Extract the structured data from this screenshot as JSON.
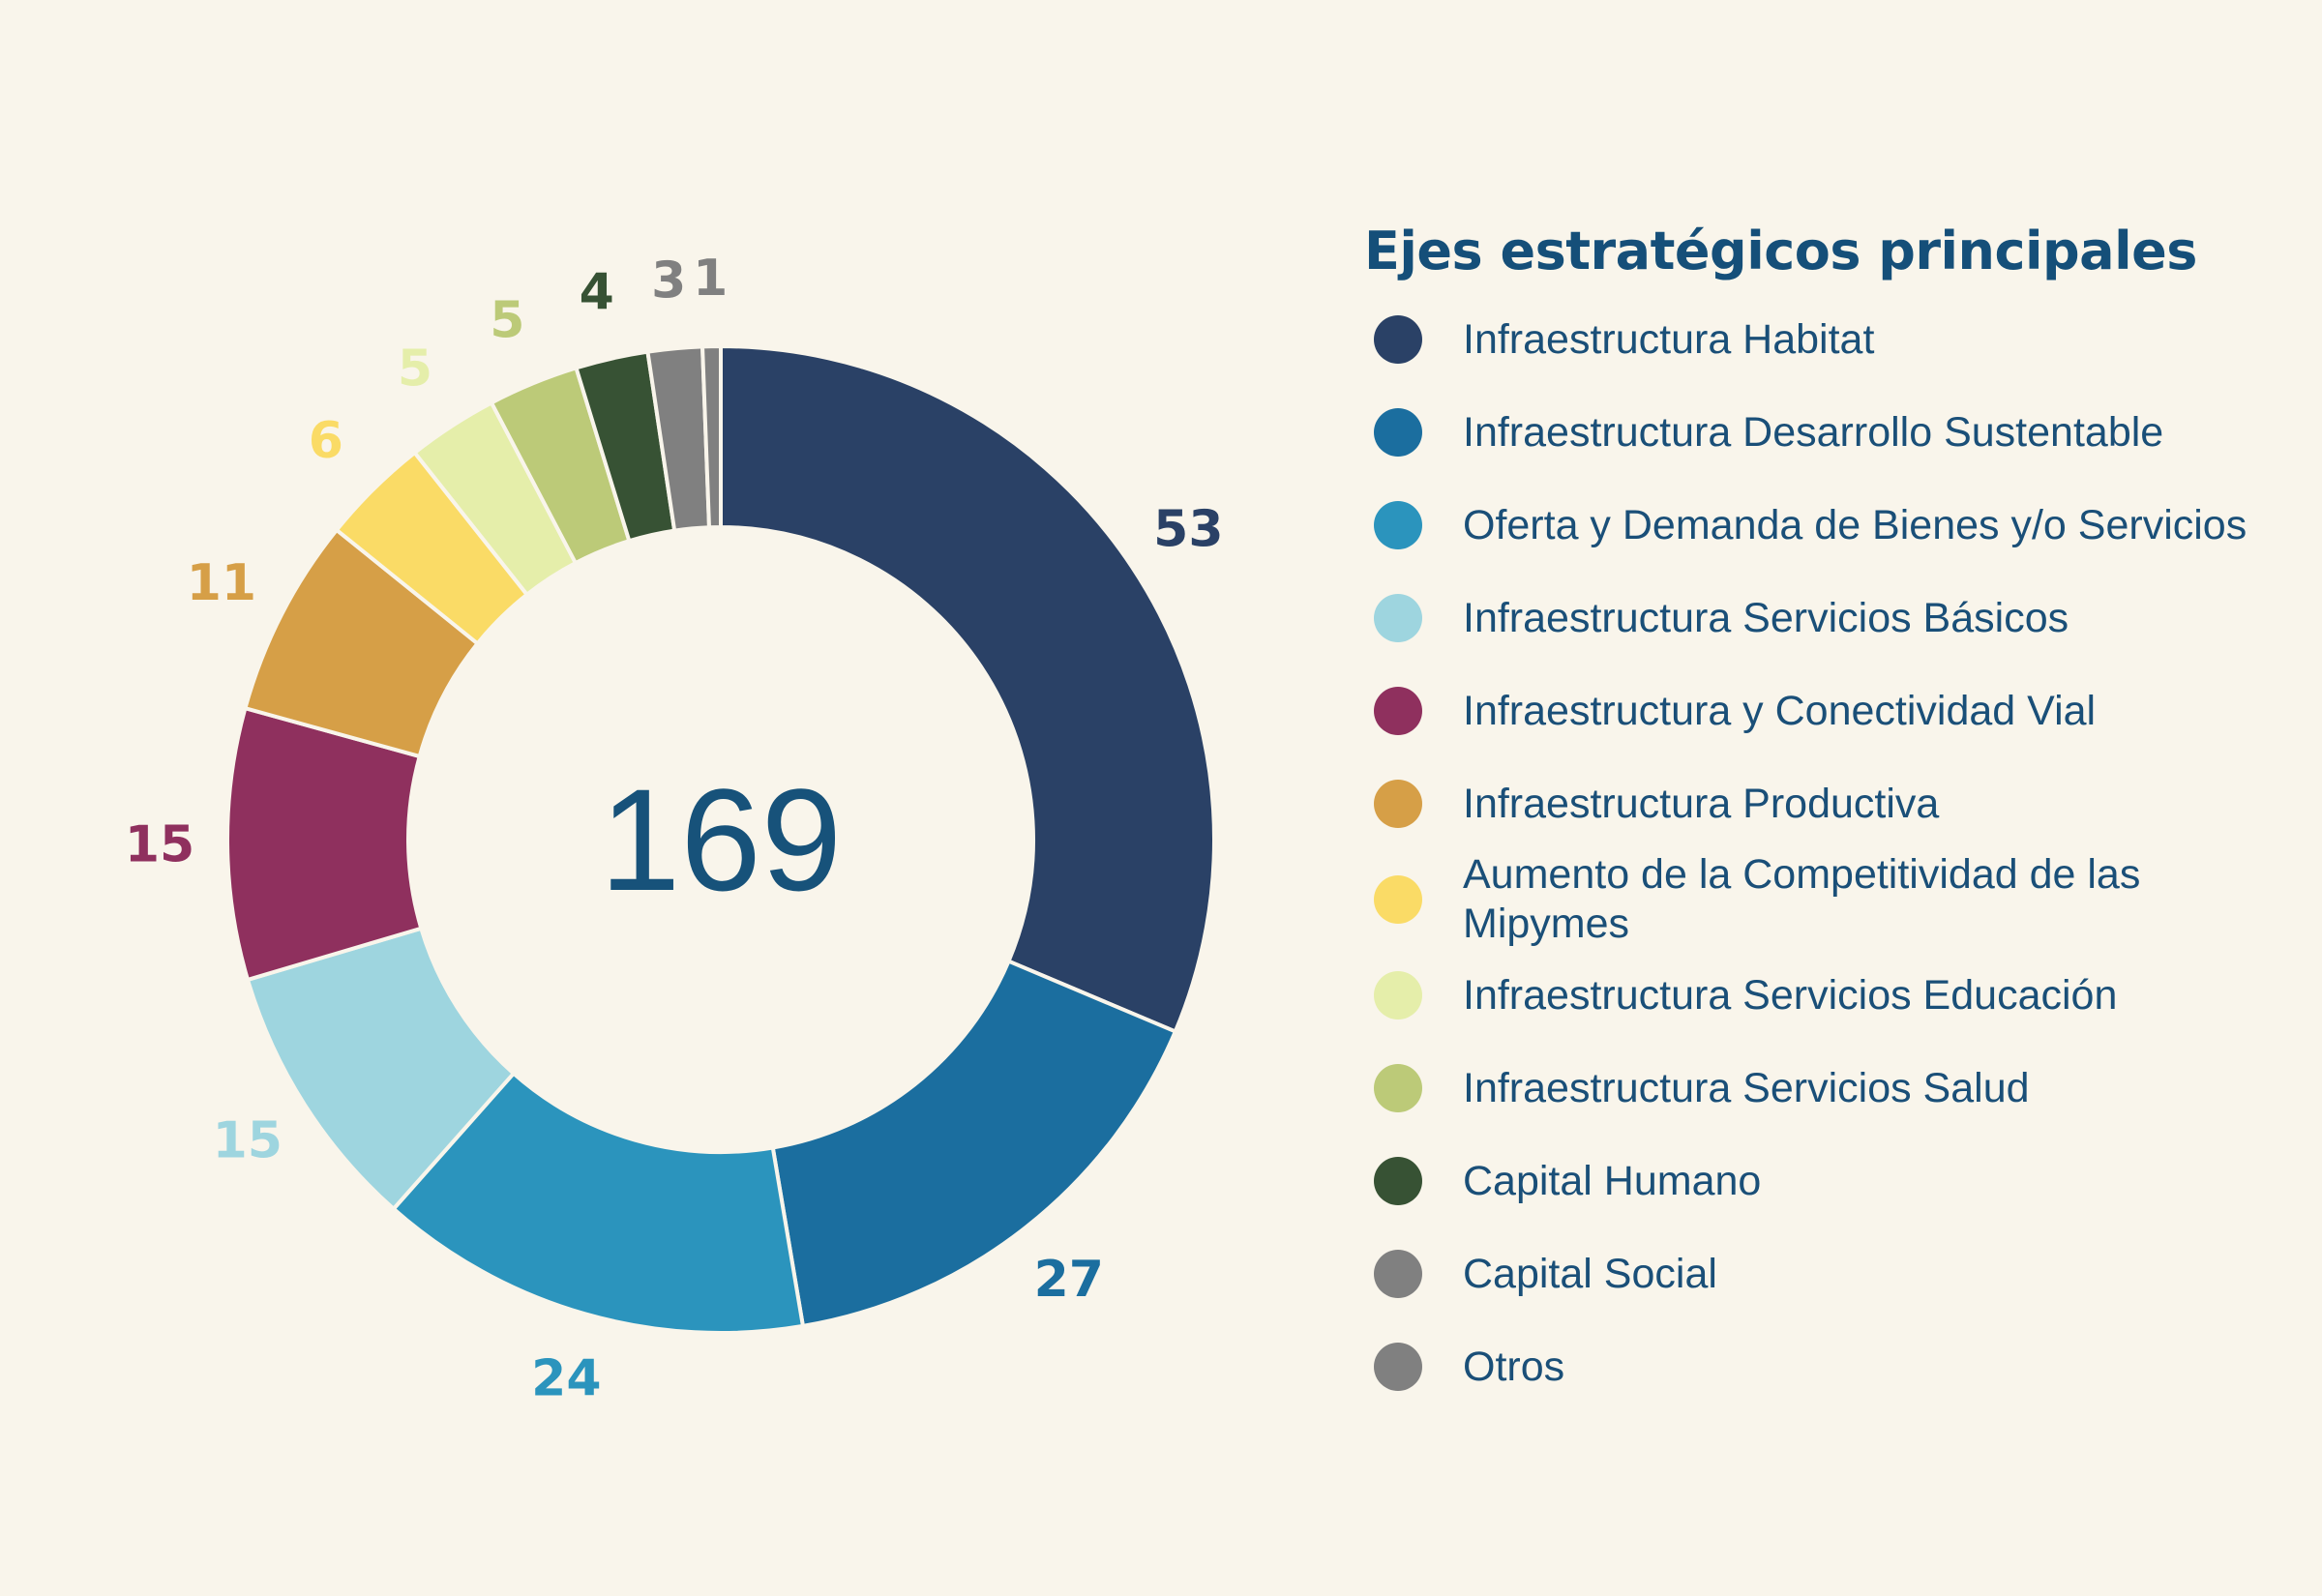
{
  "chart_data": {
    "type": "pie",
    "donut": true,
    "center_total": "169",
    "legend_title": "Ejes estratégicos principales",
    "legend_position": "right",
    "slices": [
      {
        "label": "Infraestructura Habitat",
        "value": 53,
        "color": "#2a4166",
        "label_color": "#2a4166"
      },
      {
        "label": "Infraestructura Desarrollo Sustentable",
        "value": 27,
        "color": "#1b6e9f",
        "label_color": "#1b6e9f"
      },
      {
        "label": "Oferta y Demanda de Bienes y/o Servicios",
        "value": 24,
        "color": "#2b94bd",
        "label_color": "#2b94bd"
      },
      {
        "label": "Infraestructura Servicios Básicos",
        "value": 15,
        "color": "#9ed5df",
        "label_color": "#9ed5df"
      },
      {
        "label": "Infraestructura y Conectividad Vial",
        "value": 15,
        "color": "#8f305e",
        "label_color": "#8f305e"
      },
      {
        "label": "Infraestructura Productiva",
        "value": 11,
        "color": "#d69f47",
        "label_color": "#d69f47"
      },
      {
        "label": "Aumento de la Competitividad de las Mipymes",
        "value": 6,
        "color": "#fadb66",
        "label_color": "#fadb66"
      },
      {
        "label": "Infraestructura Servicios Educación",
        "value": 5,
        "color": "#e5eeaa",
        "label_color": "#e5eeaa"
      },
      {
        "label": "Infraestructura Servicios Salud",
        "value": 5,
        "color": "#bcca78",
        "label_color": "#bcca78"
      },
      {
        "label": "Capital Humano",
        "value": 4,
        "color": "#375234",
        "label_color": "#375234"
      },
      {
        "label": "Capital Social",
        "value": 3,
        "color": "#808080",
        "label_color": "#808080"
      },
      {
        "label": "Otros",
        "value": 1,
        "color": "#808080",
        "label_color": "#808080"
      }
    ]
  }
}
